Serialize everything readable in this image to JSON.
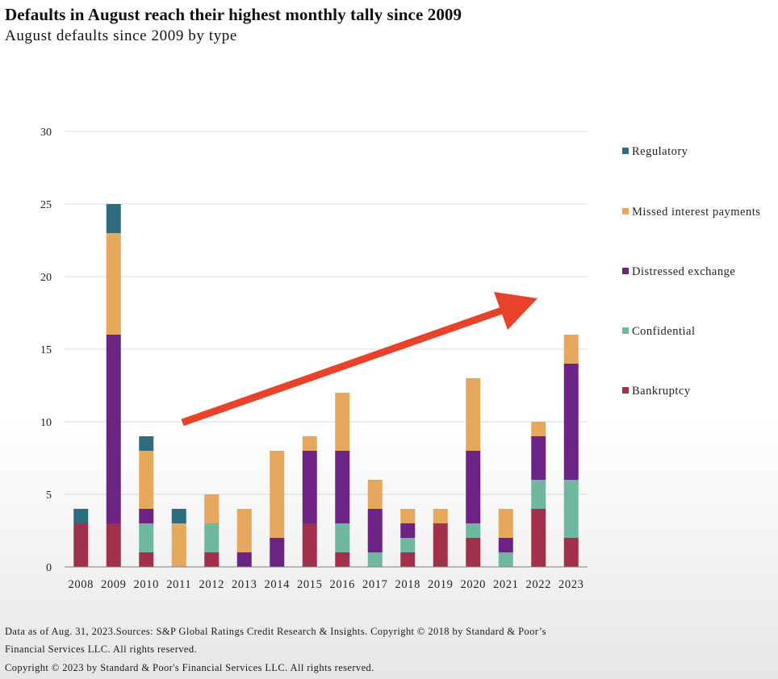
{
  "header": {
    "title": "Defaults in August reach their highest monthly tally since 2009",
    "subtitle": "August defaults since 2009 by type"
  },
  "footer": {
    "line1": "Data as of Aug. 31, 2023.Sources: S&P Global Ratings Credit Research & Insights. Copyright © 2018 by Standard & Poor’s",
    "line2": "Financial Services LLC. All rights reserved.",
    "line3": "Copyright © 2023 by Standard & Poor's Financial Services LLC. All rights reserved."
  },
  "chart_data": {
    "type": "bar",
    "stacked": true,
    "title": "Defaults in August reach their highest monthly tally since 2009",
    "subtitle": "August defaults since 2009 by type",
    "xlabel": "",
    "ylabel": "",
    "ylim": [
      0,
      30
    ],
    "yticks": [
      "0",
      "5",
      "10",
      "15",
      "20",
      "25",
      "30"
    ],
    "grid": "horizontal",
    "legend_position": "right",
    "categories": [
      "2008",
      "2009",
      "2010",
      "2011",
      "2012",
      "2013",
      "2014",
      "2015",
      "2016",
      "2017",
      "2018",
      "2019",
      "2020",
      "2021",
      "2022",
      "2023"
    ],
    "series": [
      {
        "name": "Bankruptcy",
        "color": "#A3304A",
        "values": [
          3,
          3,
          1,
          0,
          1,
          0,
          0,
          3,
          1,
          0,
          1,
          3,
          2,
          0,
          4,
          2
        ]
      },
      {
        "name": "Confidential",
        "color": "#6FB8A0",
        "values": [
          0,
          0,
          2,
          0,
          2,
          0,
          0,
          0,
          2,
          1,
          1,
          0,
          1,
          1,
          2,
          4
        ]
      },
      {
        "name": "Distressed exchange",
        "color": "#6C2384",
        "values": [
          0,
          13,
          1,
          0,
          0,
          1,
          2,
          5,
          5,
          3,
          1,
          0,
          5,
          1,
          3,
          8
        ]
      },
      {
        "name": "Missed interest payments",
        "color": "#E5A85C",
        "values": [
          0,
          7,
          4,
          3,
          2,
          3,
          6,
          1,
          4,
          2,
          1,
          1,
          5,
          2,
          1,
          2
        ]
      },
      {
        "name": "Regulatory",
        "color": "#2E6C80",
        "values": [
          1,
          2,
          1,
          1,
          0,
          0,
          0,
          0,
          0,
          0,
          0,
          0,
          0,
          0,
          0,
          0
        ]
      }
    ],
    "legend_order": [
      "Regulatory",
      "Missed interest payments",
      "Distressed exchange",
      "Confidential",
      "Bankruptcy"
    ],
    "annotation": {
      "type": "arrow",
      "color": "#E8422B",
      "direction": "upward trend"
    }
  }
}
